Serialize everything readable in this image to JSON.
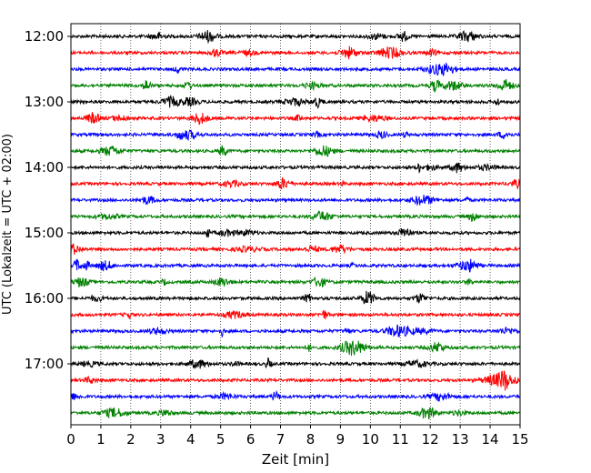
{
  "chart_data": {
    "type": "line",
    "title": "",
    "xlabel": "Zeit  [min]",
    "ylabel": "UTC (Lokalzeit = UTC + 02:00)",
    "xlim": [
      0,
      15
    ],
    "x_ticks": [
      "0",
      "1",
      "2",
      "3",
      "4",
      "5",
      "6",
      "7",
      "8",
      "9",
      "10",
      "11",
      "12",
      "13",
      "14",
      "15"
    ],
    "y_ticks": [
      "12:00",
      "13:00",
      "14:00",
      "15:00",
      "16:00",
      "17:00"
    ],
    "grid": "vertical dotted at every minute",
    "trace_colors": [
      "#000000",
      "#ff0000",
      "#0000ff",
      "#008000"
    ],
    "traces_count": 24,
    "trace_start_times": [
      "12:00",
      "12:15",
      "12:30",
      "12:45",
      "13:00",
      "13:15",
      "13:30",
      "13:45",
      "14:00",
      "14:15",
      "14:30",
      "14:45",
      "15:00",
      "15:15",
      "15:30",
      "15:45",
      "16:00",
      "16:15",
      "16:30",
      "16:45",
      "17:00",
      "17:15",
      "17:30",
      "17:45"
    ],
    "trace_interval_minutes": 15
  }
}
